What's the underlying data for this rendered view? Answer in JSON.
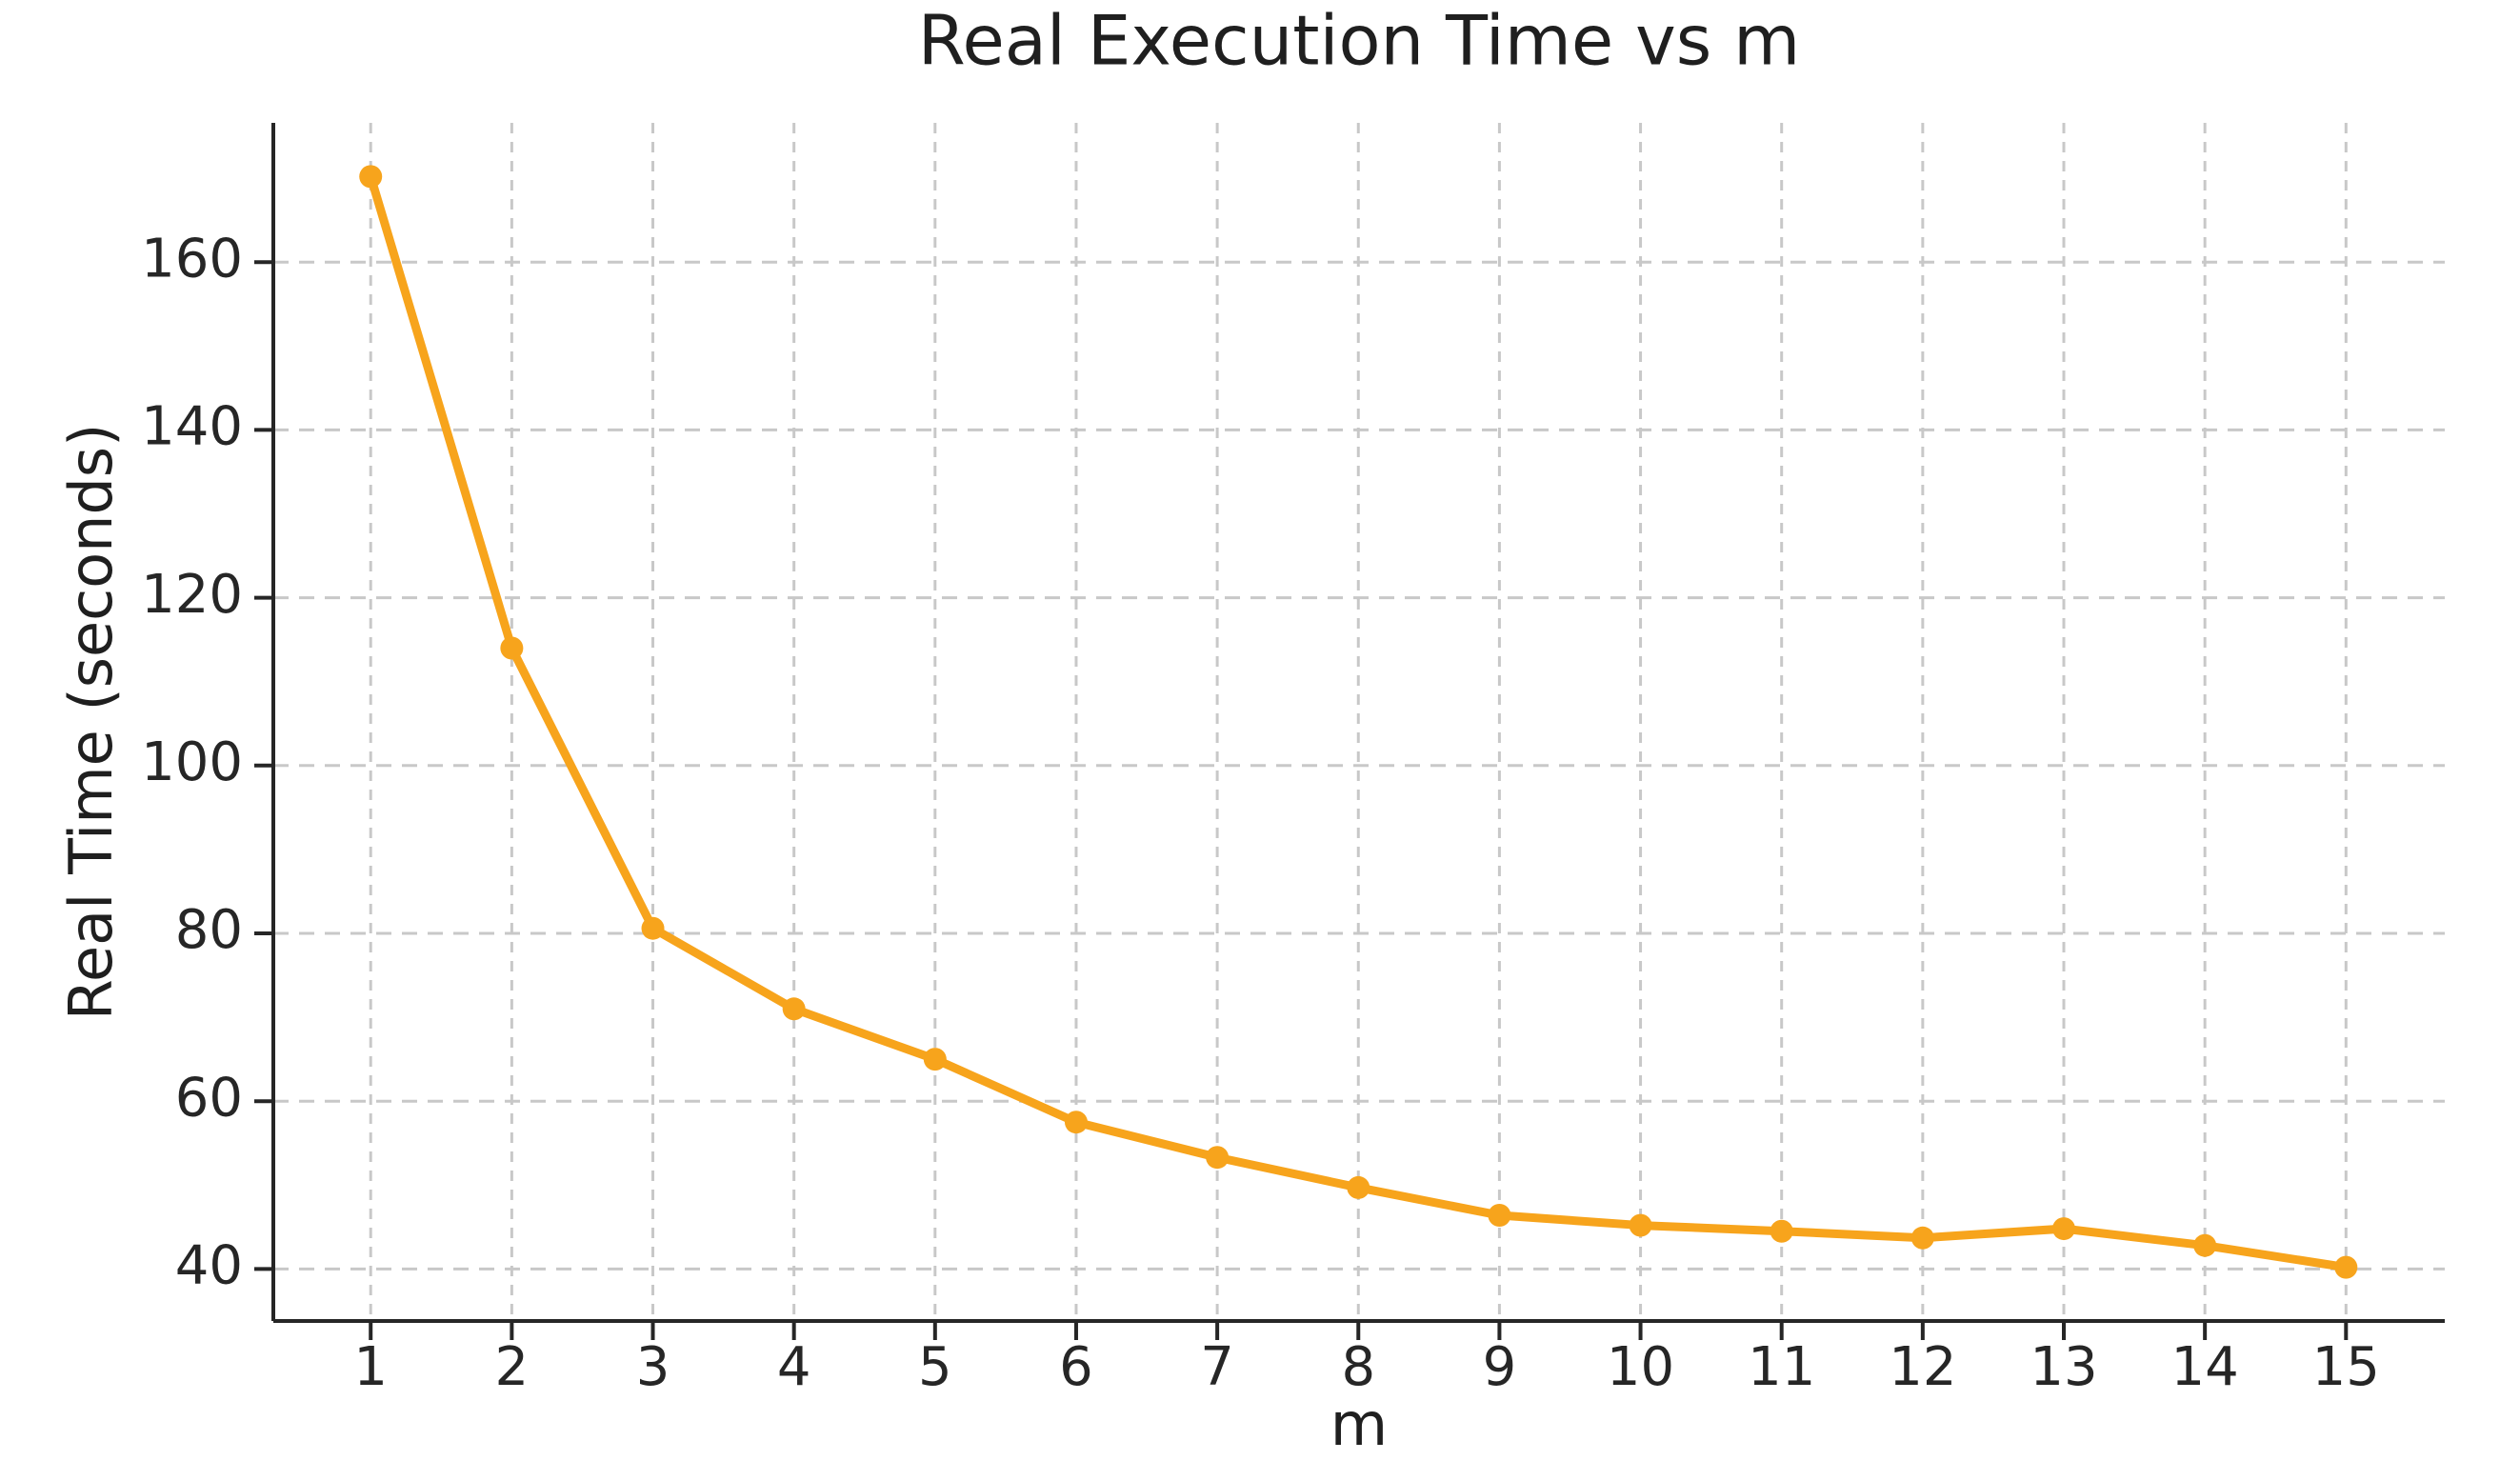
{
  "figure": {
    "background": "#ffffff"
  },
  "chart_data": {
    "type": "line",
    "title": "Real Execution Time vs m",
    "xlabel": "m",
    "ylabel": "Real Time (seconds)",
    "x": [
      1,
      2,
      3,
      4,
      5,
      6,
      7,
      8,
      9,
      10,
      11,
      12,
      13,
      14,
      15
    ],
    "series": [
      {
        "name": "Real Time",
        "values": [
          170.2,
          114.0,
          80.6,
          71.0,
          65.0,
          57.5,
          53.3,
          49.7,
          46.4,
          45.2,
          44.5,
          43.7,
          44.8,
          42.8,
          40.2
        ]
      }
    ],
    "x_ticks": [
      1,
      2,
      3,
      4,
      5,
      6,
      7,
      8,
      9,
      10,
      11,
      12,
      13,
      14,
      15
    ],
    "y_ticks": [
      40,
      60,
      80,
      100,
      120,
      140,
      160
    ],
    "xlim": [
      0.31,
      15.7
    ],
    "ylim": [
      33.8,
      176.6
    ],
    "grid": true,
    "grid_style": "dashed",
    "legend": false,
    "line_color": "#F7A41C",
    "marker": "circle",
    "marker_color": "#F7A41C",
    "grid_color": "#c8c8c8",
    "axis_color": "#262626",
    "text_color": "#1f1f1f"
  }
}
